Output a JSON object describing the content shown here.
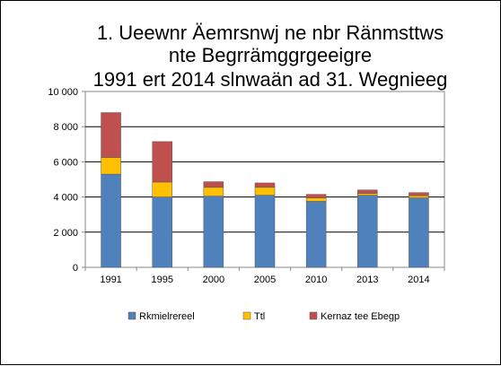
{
  "chart_data": {
    "type": "bar",
    "stacked": true,
    "title_lines": [
      "1. Ueewnr Äemrsnwj ne nbr Ränmsttws",
      "nte Begrrämggrgeeigre",
      "1991 ert 2014 slnwaän ad 31. Wegnieeg"
    ],
    "categories": [
      "1991",
      "1995",
      "2000",
      "2005",
      "2010",
      "2013",
      "2014"
    ],
    "series": [
      {
        "name": "Rkmielrereel",
        "color": "#4F81BD",
        "values": [
          5300,
          4000,
          4050,
          4100,
          3750,
          4100,
          3950
        ]
      },
      {
        "name": "Ttl",
        "color": "#FFC000",
        "values": [
          950,
          850,
          500,
          450,
          200,
          100,
          120
        ]
      },
      {
        "name": "Kernaz tee Ebegp",
        "color": "#C0504D",
        "values": [
          2550,
          2300,
          320,
          250,
          200,
          200,
          180
        ]
      }
    ],
    "ylim": [
      0,
      10000
    ],
    "yticks": [
      0,
      2000,
      4000,
      6000,
      8000,
      10000
    ],
    "ytick_labels": [
      "0",
      "2 000",
      "4 000",
      "6 000",
      "8 000",
      "10 000"
    ],
    "gridlines": true,
    "legend_position": "bottom"
  }
}
